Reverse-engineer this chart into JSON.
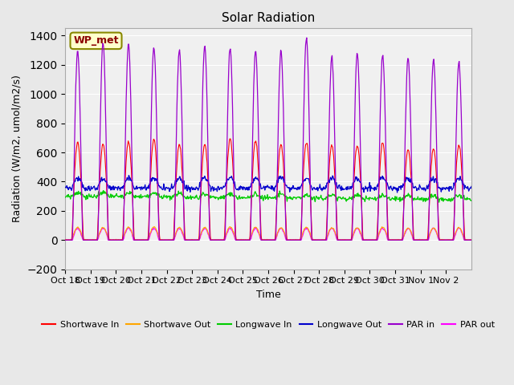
{
  "title": "Solar Radiation",
  "xlabel": "Time",
  "ylabel": "Radiation (W/m2, umol/m2/s)",
  "ylim": [
    -200,
    1450
  ],
  "yticks": [
    -200,
    0,
    200,
    400,
    600,
    800,
    1000,
    1200,
    1400
  ],
  "bg_color": "#e8e8e8",
  "plot_bg_color": "#f0f0f0",
  "legend_label": "WP_met",
  "series_colors": {
    "sw_in": "#ff0000",
    "sw_out": "#ffa500",
    "lw_in": "#00cc00",
    "lw_out": "#0000cc",
    "par_in": "#9900cc",
    "par_out": "#ff00ff"
  },
  "legend_entries": [
    {
      "label": "Shortwave In",
      "color": "#ff0000"
    },
    {
      "label": "Shortwave Out",
      "color": "#ffa500"
    },
    {
      "label": "Longwave In",
      "color": "#00cc00"
    },
    {
      "label": "Longwave Out",
      "color": "#0000cc"
    },
    {
      "label": "PAR in",
      "color": "#9900cc"
    },
    {
      "label": "PAR out",
      "color": "#ff00ff"
    }
  ],
  "xtick_labels": [
    "Oct 18",
    "Oct 19",
    "Oct 20",
    "Oct 21",
    "Oct 22",
    "Oct 23",
    "Oct 24",
    "Oct 25",
    "Oct 26",
    "Oct 27",
    "Oct 28",
    "Oct 29",
    "Oct 30",
    "Oct 31",
    "Nov 1",
    "Nov 2"
  ],
  "n_days": 16,
  "par_in_peaks": [
    1300,
    1350,
    1340,
    1320,
    1300,
    1330,
    1310,
    1300,
    1290,
    1380,
    1250,
    1280,
    1260,
    1250,
    1240,
    1220
  ]
}
